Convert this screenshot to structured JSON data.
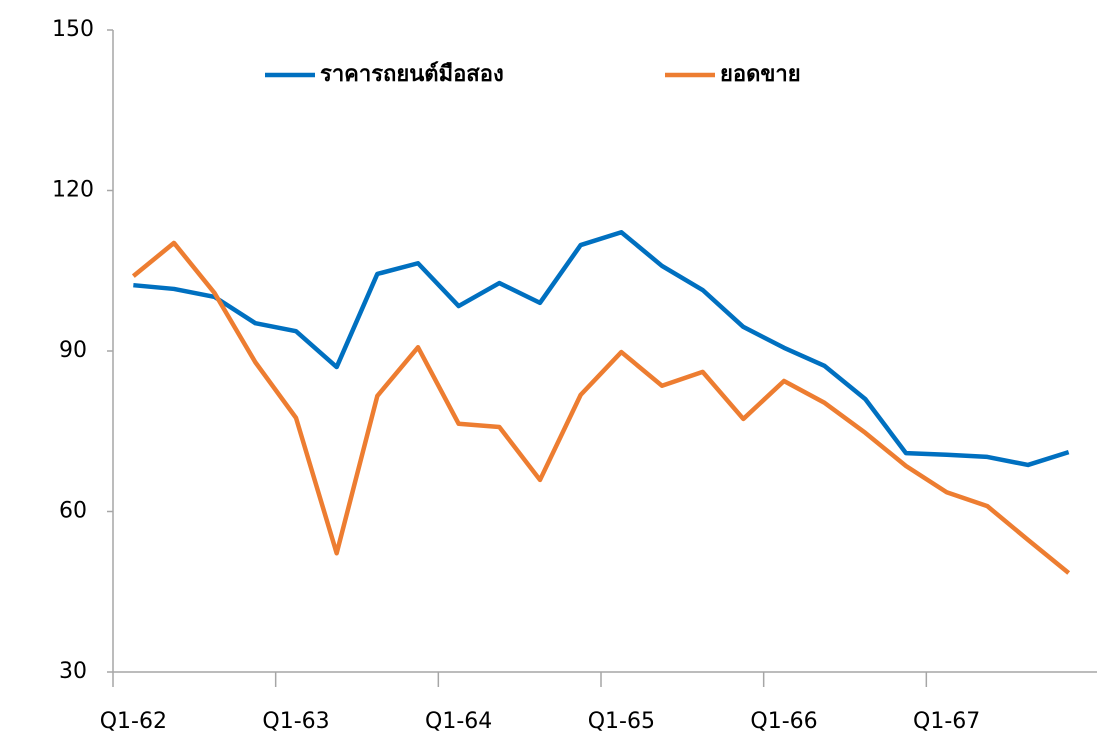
{
  "chart_data": {
    "type": "line",
    "categories": [
      "Q1-62",
      null,
      null,
      null,
      "Q1-63",
      null,
      null,
      null,
      "Q1-64",
      null,
      null,
      null,
      "Q1-65",
      null,
      null,
      null,
      "Q1-66",
      null,
      null,
      null,
      "Q1-67",
      null,
      null,
      null
    ],
    "series": [
      {
        "name": "ราคารถยนต์มือสอง",
        "color": "#0070c0",
        "values": [
          102.3,
          101.6,
          100.1,
          95.2,
          93.7,
          87,
          104.4,
          106.4,
          98.4,
          102.7,
          99,
          109.8,
          112.2,
          105.9,
          101.4,
          94.5,
          90.6,
          87.2,
          81,
          70.9,
          70.6,
          70.2,
          68.7,
          71.1
        ]
      },
      {
        "name": "ยอดขาย",
        "color": "#ed7d31",
        "values": [
          104,
          110.2,
          100.8,
          87.9,
          77.5,
          52.2,
          81.6,
          90.7,
          76.4,
          75.8,
          65.9,
          81.8,
          89.8,
          83.5,
          86.1,
          77.3,
          84.4,
          80.3,
          74.7,
          68.5,
          63.6,
          61,
          54.7,
          48.5
        ]
      }
    ],
    "ylim": [
      30,
      150
    ],
    "yticks": [
      30,
      60,
      90,
      120,
      150
    ],
    "grid": false,
    "legend": "top"
  }
}
